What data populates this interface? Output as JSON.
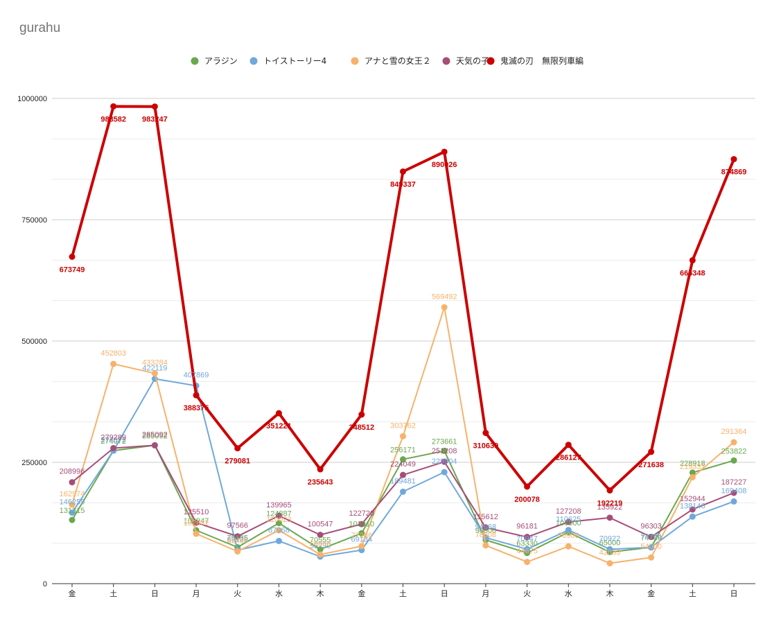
{
  "chart_data": {
    "type": "line",
    "title": "gurahu",
    "xlabel": "",
    "ylabel": "",
    "ylim": [
      0,
      1000000
    ],
    "yticks": [
      0,
      250000,
      500000,
      750000,
      1000000
    ],
    "ytick_labels": [
      "0",
      "250000",
      "500000",
      "750000",
      "1000000"
    ],
    "grid": true,
    "legend_position": "top",
    "categories": [
      "金",
      "土",
      "日",
      "月",
      "火",
      "水",
      "木",
      "金",
      "土",
      "日",
      "月",
      "火",
      "水",
      "木",
      "金",
      "土",
      "日"
    ],
    "series": [
      {
        "name": "アラジン",
        "color": "#6aa84f",
        "width": 2,
        "values": [
          131315,
          274072,
          285092,
          109947,
          75035,
          124887,
          70555,
          103910,
          256171,
          273661,
          90000,
          63330,
          106000,
          65000,
          74786,
          228918,
          253822
        ]
      },
      {
        "name": "トイストーリー4",
        "color": "#6fa8dc",
        "width": 2,
        "values": [
          146259,
          274072,
          422119,
          407869,
          69129,
          87968,
          55730,
          69134,
          189481,
          229904,
          94668,
          70947,
          110625,
          70922,
          74786,
          138146,
          169408
        ]
      },
      {
        "name": "アナと雪の女王２",
        "color": "#f6b26b",
        "width": 2,
        "values": [
          162974,
          452803,
          433284,
          102832,
          66400,
          110023,
          60000,
          77286,
          303762,
          569492,
          78808,
          44675,
          76900,
          42033,
          54000,
          219331,
          291364
        ]
      },
      {
        "name": "天気の子",
        "color": "#a64d79",
        "width": 2,
        "values": [
          208996,
          279289,
          285092,
          125510,
          97566,
          139965,
          100547,
          122720,
          224049,
          251208,
          115612,
          96181,
          127208,
          135922,
          96303,
          152944,
          187227
        ]
      },
      {
        "name": "鬼滅の刃　無限列車編",
        "color": "#cc0000",
        "width": 4,
        "values": [
          673749,
          983582,
          983247,
          388375,
          279081,
          351221,
          235643,
          348512,
          849337,
          890026,
          310639,
          200078,
          286127,
          192219,
          271638,
          666348,
          874869
        ]
      }
    ]
  }
}
